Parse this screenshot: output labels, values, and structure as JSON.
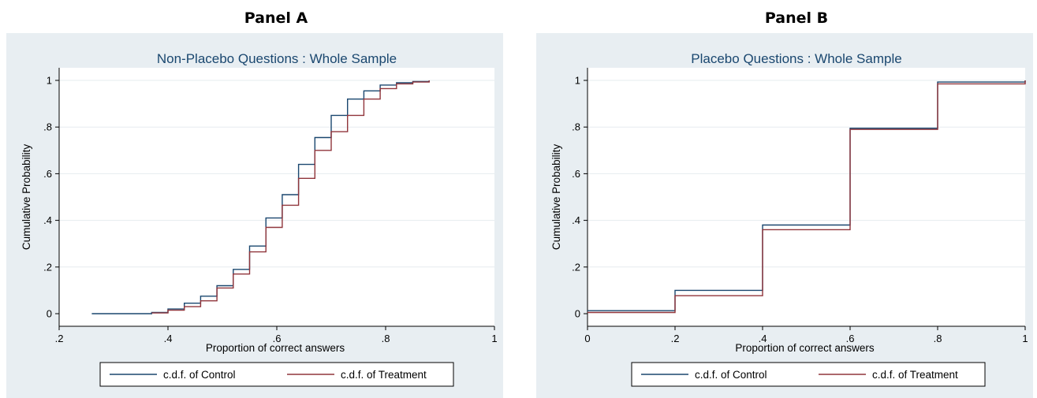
{
  "panels": {
    "a": {
      "label": "Panel A"
    },
    "b": {
      "label": "Panel B"
    }
  },
  "colors": {
    "background": "#e8eef2",
    "plot_region": "#ffffff",
    "grid": "#e6ecef",
    "control": "#1a476f",
    "treatment": "#90353b",
    "title": "#1a476f"
  },
  "chart_data": [
    {
      "type": "line",
      "step": true,
      "title": "Non-Placebo Questions : Whole Sample",
      "xlabel": "Proportion of correct answers",
      "ylabel": "Cumulative Probability",
      "xlim": [
        0.2,
        1.0
      ],
      "ylim": [
        0,
        1
      ],
      "xticks": [
        0.2,
        0.4,
        0.6,
        0.8,
        1.0
      ],
      "xtick_labels": [
        ".2",
        ".4",
        ".6",
        ".8",
        "1"
      ],
      "yticks": [
        0,
        0.2,
        0.4,
        0.6,
        0.8,
        1.0
      ],
      "ytick_labels": [
        "0",
        ".2",
        ".4",
        ".6",
        ".8",
        "1"
      ],
      "grid": true,
      "legend_position": "bottom",
      "series": [
        {
          "name": "c.d.f. of Control",
          "x": [
            0.26,
            0.37,
            0.4,
            0.43,
            0.46,
            0.49,
            0.52,
            0.55,
            0.58,
            0.61,
            0.64,
            0.67,
            0.7,
            0.73,
            0.76,
            0.79,
            0.82,
            0.85,
            0.88
          ],
          "y": [
            0.0,
            0.005,
            0.02,
            0.045,
            0.075,
            0.12,
            0.19,
            0.29,
            0.41,
            0.51,
            0.64,
            0.755,
            0.85,
            0.92,
            0.955,
            0.98,
            0.99,
            0.995,
            1.0
          ]
        },
        {
          "name": "c.d.f. of Treatment",
          "x": [
            0.37,
            0.4,
            0.43,
            0.46,
            0.49,
            0.52,
            0.55,
            0.58,
            0.61,
            0.64,
            0.67,
            0.7,
            0.73,
            0.76,
            0.79,
            0.82,
            0.85,
            0.88
          ],
          "y": [
            0.003,
            0.015,
            0.03,
            0.055,
            0.11,
            0.17,
            0.265,
            0.37,
            0.465,
            0.58,
            0.7,
            0.78,
            0.85,
            0.92,
            0.965,
            0.985,
            0.993,
            1.0
          ]
        }
      ]
    },
    {
      "type": "line",
      "step": true,
      "title": "Placebo Questions : Whole Sample",
      "xlabel": "Proportion of correct answers",
      "ylabel": "Cumulative Probability",
      "xlim": [
        0,
        1.0
      ],
      "ylim": [
        0,
        1
      ],
      "xticks": [
        0,
        0.2,
        0.4,
        0.6,
        0.8,
        1.0
      ],
      "xtick_labels": [
        "0",
        ".2",
        ".4",
        ".6",
        ".8",
        "1"
      ],
      "yticks": [
        0,
        0.2,
        0.4,
        0.6,
        0.8,
        1.0
      ],
      "ytick_labels": [
        "0",
        ".2",
        ".4",
        ".6",
        ".8",
        "1"
      ],
      "grid": true,
      "legend_position": "bottom",
      "series": [
        {
          "name": "c.d.f. of Control",
          "x": [
            0,
            0.2,
            0.4,
            0.6,
            0.8,
            1.0
          ],
          "y": [
            0.013,
            0.1,
            0.38,
            0.795,
            0.993,
            1.0
          ]
        },
        {
          "name": "c.d.f. of Treatment",
          "x": [
            0,
            0.2,
            0.4,
            0.6,
            0.8,
            1.0
          ],
          "y": [
            0.005,
            0.077,
            0.36,
            0.79,
            0.985,
            1.0
          ]
        }
      ]
    }
  ]
}
